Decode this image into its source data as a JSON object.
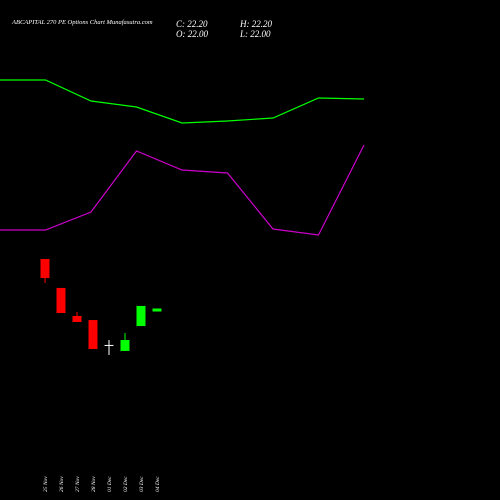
{
  "chart_data": [
    {
      "type": "candlestick",
      "title": "ABCAPITAL 270 PE Options Chart Munafasutra.com",
      "ohlc_texts": {
        "close": "C: 22.20",
        "high": "H: 22.20",
        "open": "O: 22.00",
        "low": "L: 22.00"
      },
      "categories": [
        "25 Nov",
        "26 Nov",
        "27 Nov",
        "28 Nov",
        "01 Dec",
        "02 Dec",
        "03 Dec",
        "04 Dec"
      ],
      "open": [
        25.5,
        23.57,
        21.7,
        21.43,
        19.77,
        19.37,
        21.03,
        22.0
      ],
      "high": [
        25.5,
        23.57,
        21.97,
        21.43,
        20.1,
        20.57,
        22.37,
        22.2
      ],
      "low": [
        23.9,
        21.9,
        21.3,
        19.5,
        19.1,
        19.37,
        21.03,
        22.0
      ],
      "close": [
        24.23,
        21.9,
        21.3,
        19.5,
        19.77,
        20.1,
        22.37,
        22.2
      ],
      "up_color": "#00ff00",
      "down_color": "#ff0000",
      "doji_color": "#ffffff",
      "ylim": [
        14,
        32
      ]
    },
    {
      "type": "line",
      "categories": [
        null,
        null,
        null,
        null,
        null,
        null,
        null,
        null,
        null
      ],
      "series": [
        {
          "color": "#00ff00",
          "values": [
            420,
            420,
            399,
            393,
            377,
            379,
            382,
            402,
            401
          ]
        },
        {
          "color": "#cc00cc",
          "values": [
            270,
            270,
            288,
            349,
            330,
            327,
            271,
            265,
            355
          ]
        }
      ],
      "ylim": [
        0,
        500
      ]
    }
  ]
}
